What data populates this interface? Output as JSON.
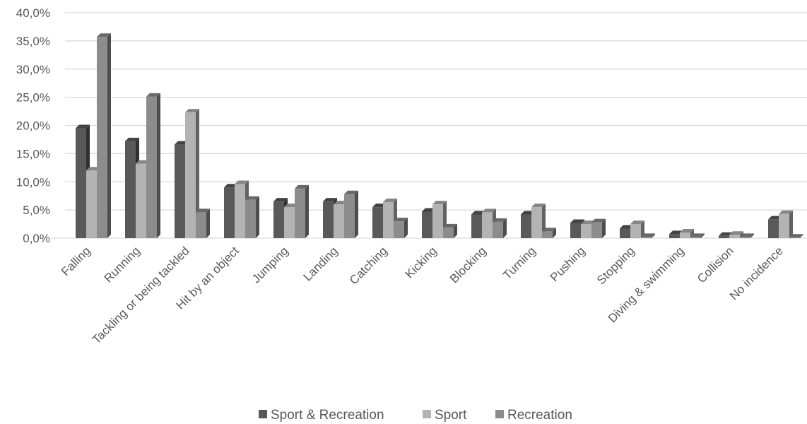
{
  "chart_data": {
    "type": "bar",
    "categories": [
      "Falling",
      "Running",
      "Tackling or being tackled",
      "Hit by an object",
      "Jumping",
      "Landing",
      "Catching",
      "Kicking",
      "Blocking",
      "Turning",
      "Pushing",
      "Stopping",
      "Diving & swimming",
      "Collision",
      "No incidence"
    ],
    "series": [
      {
        "name": "Sport & Recreation",
        "color": "#595959",
        "values": [
          19.5,
          17.2,
          16.6,
          9.0,
          6.5,
          6.5,
          5.5,
          4.7,
          4.2,
          4.2,
          2.7,
          1.7,
          0.7,
          0.4,
          3.3
        ]
      },
      {
        "name": "Sport",
        "color": "#b3b3b3",
        "values": [
          12.0,
          13.2,
          22.3,
          9.6,
          5.5,
          6.0,
          6.4,
          6.0,
          4.6,
          5.5,
          2.5,
          2.5,
          1.0,
          0.6,
          4.3
        ]
      },
      {
        "name": "Recreation",
        "color": "#8c8c8c",
        "values": [
          35.7,
          25.1,
          4.6,
          6.8,
          8.8,
          7.8,
          3.0,
          1.9,
          2.9,
          1.2,
          2.8,
          0.2,
          0.2,
          0.2,
          0.1
        ]
      }
    ],
    "yticks": [
      "0,0%",
      "5,0%",
      "10,0%",
      "15,0%",
      "20,0%",
      "25,0%",
      "30,0%",
      "35,0%",
      "40,0%"
    ],
    "ylim": [
      0,
      40
    ],
    "grid": true,
    "legend_position": "bottom"
  }
}
